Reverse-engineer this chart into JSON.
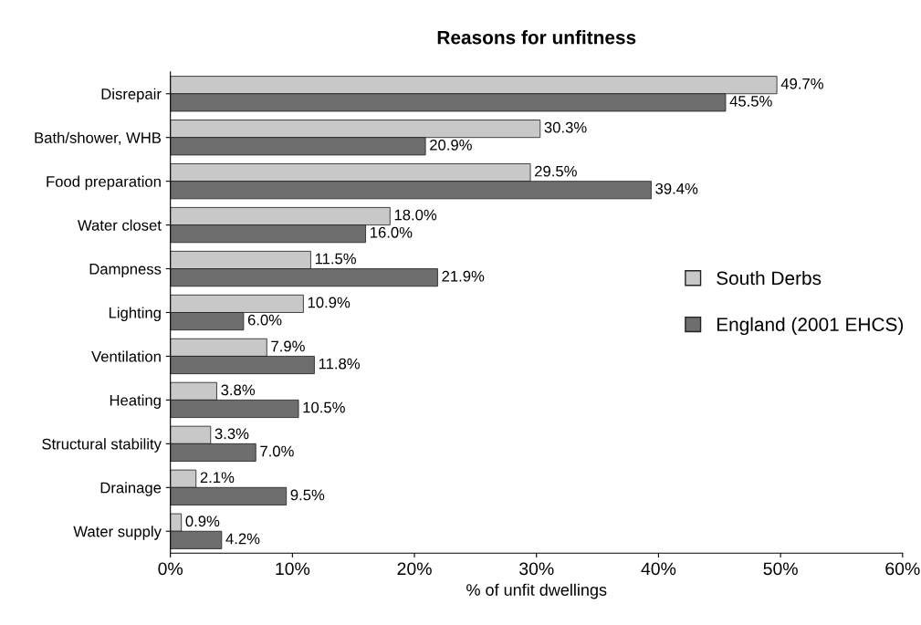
{
  "chart_data": {
    "type": "bar",
    "orientation": "horizontal",
    "title": "Reasons for unfitness",
    "xlabel": "% of unfit dwellings",
    "categories": [
      "Disrepair",
      "Bath/shower, WHB",
      "Food preparation",
      "Water closet",
      "Dampness",
      "Lighting",
      "Ventilation",
      "Heating",
      "Structural stability",
      "Drainage",
      "Water supply"
    ],
    "series": [
      {
        "name": "South Derbs",
        "color": "#c8c8c8",
        "values": [
          49.7,
          30.3,
          29.5,
          18.0,
          11.5,
          10.9,
          7.9,
          3.8,
          3.3,
          2.1,
          0.9
        ],
        "value_labels": [
          "49.7%",
          "30.3%",
          "29.5%",
          "18.0%",
          "11.5%",
          "10.9%",
          "7.9%",
          "3.8%",
          "3.3%",
          "2.1%",
          "0.9%"
        ]
      },
      {
        "name": "England (2001 EHCS)",
        "color": "#6e6e6e",
        "values": [
          45.5,
          20.9,
          39.4,
          16.0,
          21.9,
          6.0,
          11.8,
          10.5,
          7.0,
          9.5,
          4.2
        ],
        "value_labels": [
          "45.5%",
          "20.9%",
          "39.4%",
          "16.0%",
          "21.9%",
          "6.0%",
          "11.8%",
          "10.5%",
          "7.0%",
          "9.5%",
          "4.2%"
        ]
      }
    ],
    "xlim": [
      0,
      60
    ],
    "xticks": [
      {
        "value": 0,
        "label": "0%"
      },
      {
        "value": 10,
        "label": "10%"
      },
      {
        "value": 20,
        "label": "20%"
      },
      {
        "value": 30,
        "label": "30%"
      },
      {
        "value": 40,
        "label": "40%"
      },
      {
        "value": 50,
        "label": "50%"
      },
      {
        "value": 60,
        "label": "60%"
      }
    ],
    "legend": "right",
    "grid": false
  }
}
